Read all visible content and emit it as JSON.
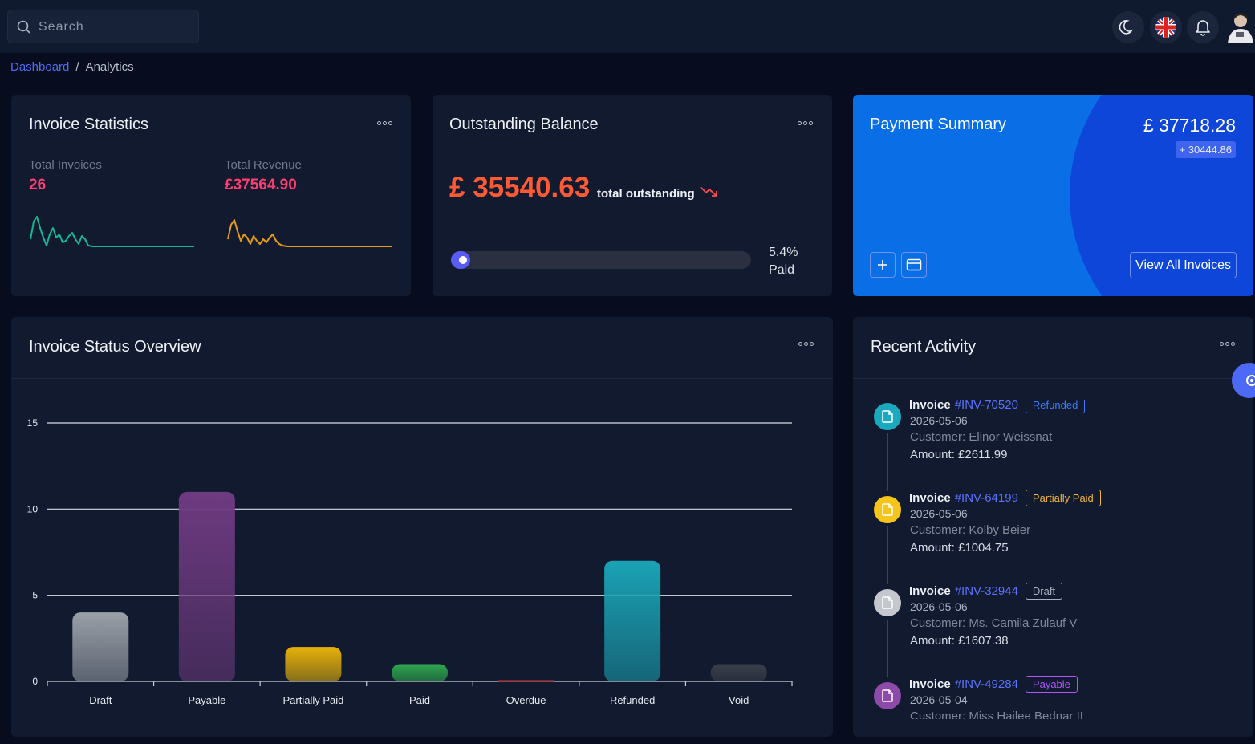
{
  "search": {
    "placeholder": "Search"
  },
  "breadcrumb": {
    "root": "Dashboard",
    "separator": "/",
    "current": "Analytics"
  },
  "invoice_statistics": {
    "title": "Invoice Statistics",
    "total_invoices_label": "Total Invoices",
    "total_invoices_value": "26",
    "total_revenue_label": "Total Revenue",
    "total_revenue_value": "£37564.90"
  },
  "outstanding": {
    "title": "Outstanding Balance",
    "amount": "£ 35540.63",
    "label": "total outstanding",
    "percent": "5.4%",
    "percent_label": "Paid",
    "paid_fraction": 0.054
  },
  "payment_summary": {
    "title": "Payment Summary",
    "amount": "£ 37718.28",
    "change": "+ 30444.86",
    "view_all": "View All Invoices"
  },
  "status_overview": {
    "title": "Invoice Status Overview"
  },
  "chart_data": {
    "type": "bar",
    "categories": [
      "Draft",
      "Payable",
      "Partially Paid",
      "Paid",
      "Overdue",
      "Refunded",
      "Void"
    ],
    "values": [
      4,
      11,
      2,
      1,
      0,
      7,
      1
    ],
    "colors": [
      "#9aa0a8",
      "#6e3a80",
      "#e6b20a",
      "#2fa84f",
      "#e03a3a",
      "#1aa3b5",
      "#3a3f4a"
    ],
    "yticks": [
      0,
      5,
      10,
      15
    ],
    "ylim": [
      0,
      15
    ],
    "grid": true
  },
  "recent_activity": {
    "title": "Recent Activity",
    "items": [
      {
        "word": "Invoice",
        "number": "#INV-70520",
        "status": "Refunded",
        "color": "#1ba9bd",
        "date": "2026-05-06",
        "customer": "Customer: Elinor Weissnat",
        "amount": "Amount: £2611.99"
      },
      {
        "word": "Invoice",
        "number": "#INV-64199",
        "status": "Partially Paid",
        "color": "#f5c51a",
        "date": "2026-05-06",
        "customer": "Customer: Kolby Beier",
        "amount": "Amount: £1004.75"
      },
      {
        "word": "Invoice",
        "number": "#INV-32944",
        "status": "Draft",
        "color": "#c4c7cd",
        "date": "2026-05-06",
        "customer": "Customer: Ms. Camila Zulauf V",
        "amount": "Amount: £1607.38"
      },
      {
        "word": "Invoice",
        "number": "#INV-49284",
        "status": "Payable",
        "color": "#8e4aa8",
        "date": "2026-05-04",
        "customer": "Customer: Miss Hailee Bednar II",
        "amount": ""
      }
    ]
  },
  "icons": [
    "search-icon",
    "moon-icon",
    "uk-flag-icon",
    "bell-icon",
    "avatar",
    "more-icon",
    "plus-icon",
    "card-icon",
    "file-icon",
    "gear-icon"
  ]
}
